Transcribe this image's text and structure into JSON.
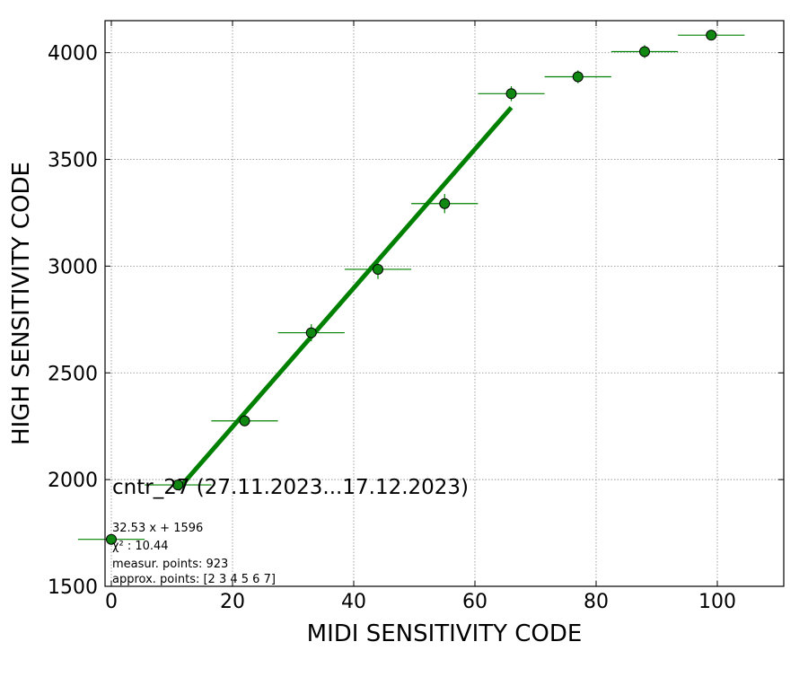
{
  "chart_data": {
    "type": "scatter",
    "title": "",
    "xlabel": "MIDI SENSITIVITY CODE",
    "ylabel": "HIGH SENSITIVITY CODE",
    "xlim": [
      -1,
      111
    ],
    "ylim": [
      1500,
      4150
    ],
    "x_ticks": [
      0,
      20,
      40,
      60,
      80,
      100
    ],
    "y_ticks": [
      1500,
      2000,
      2500,
      3000,
      3500,
      4000
    ],
    "grid": true,
    "points": [
      {
        "x": 0,
        "y": 1720,
        "xerr": 5.5,
        "yerr": 20
      },
      {
        "x": 11,
        "y": 1975,
        "xerr": 5.5,
        "yerr": 20
      },
      {
        "x": 22,
        "y": 2275,
        "xerr": 5.5,
        "yerr": 25
      },
      {
        "x": 33,
        "y": 2688,
        "xerr": 5.5,
        "yerr": 40
      },
      {
        "x": 44,
        "y": 2985,
        "xerr": 5.5,
        "yerr": 45
      },
      {
        "x": 55,
        "y": 3293,
        "xerr": 5.5,
        "yerr": 45
      },
      {
        "x": 66,
        "y": 3808,
        "xerr": 5.5,
        "yerr": 35
      },
      {
        "x": 77,
        "y": 3887,
        "xerr": 5.5,
        "yerr": 30
      },
      {
        "x": 88,
        "y": 4005,
        "xerr": 5.5,
        "yerr": 30
      },
      {
        "x": 99,
        "y": 4082,
        "xerr": 5.5,
        "yerr": 20
      }
    ],
    "fit": {
      "slope": 32.53,
      "intercept": 1596,
      "x_range": [
        11,
        66
      ]
    },
    "colors": {
      "marker": "#118811",
      "fit": "#008000",
      "errorbar": "#008000",
      "grid": "#999999"
    },
    "annotation_title": "cntr_27 (27.11.2023...17.12.2023)",
    "annotation_lines": [
      "32.53 x + 1596",
      "χ² : 10.44",
      "measur. points: 923",
      "approx. points: [2 3 4 5 6 7]"
    ]
  }
}
